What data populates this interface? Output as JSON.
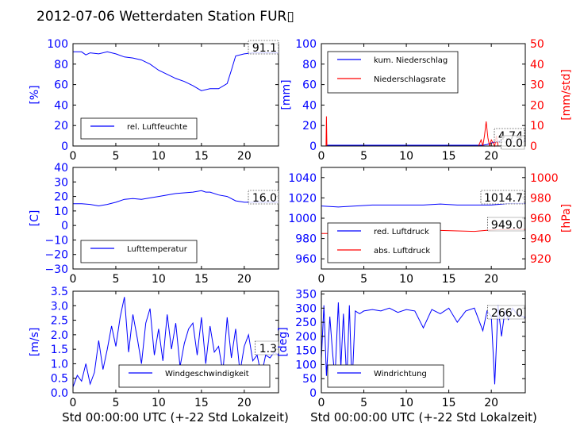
{
  "title": "2012-07-06 Wetterdaten Station FUR▯",
  "xlabel": "Std 00:00:00 UTC (+-22 Std Lokalzeit)",
  "colors": {
    "primary": "#0000ff",
    "secondary": "#ff0000",
    "frame": "#000000"
  },
  "chart_data": [
    {
      "id": "humidity",
      "type": "line",
      "ylabel": "[%]",
      "ylim": [
        0,
        100
      ],
      "yticks": [
        "0",
        "20",
        "40",
        "60",
        "80",
        "100"
      ],
      "xlim": [
        0,
        24
      ],
      "xticks": [
        "0",
        "5",
        "10",
        "15",
        "20"
      ],
      "value_label": "91.1",
      "legend": [
        {
          "name": "rel. Luftfeuchte",
          "color": "#0000ff"
        }
      ],
      "legend_position": "lower-left",
      "series": [
        {
          "name": "rel. Luftfeuchte",
          "color": "#0000ff",
          "x": [
            0,
            1,
            1.5,
            2,
            3,
            4,
            5,
            6,
            7,
            8,
            9,
            10,
            11,
            12,
            13,
            14,
            15,
            16,
            17,
            18,
            18.5,
            19,
            20,
            21,
            22,
            23,
            24
          ],
          "y": [
            92,
            92,
            89,
            91,
            90,
            92,
            90,
            87,
            86,
            84,
            80,
            74,
            70,
            66,
            63,
            59,
            54,
            56,
            56,
            61,
            74,
            88,
            90,
            91,
            91,
            91,
            91
          ]
        }
      ]
    },
    {
      "id": "precipitation",
      "type": "line",
      "ylabel": "[mm]",
      "ylabel_right": "[mm/std]",
      "ylim": [
        0,
        100
      ],
      "ylim_right": [
        0,
        50
      ],
      "yticks": [
        "0",
        "20",
        "40",
        "60",
        "80",
        "100"
      ],
      "yticks_right": [
        "0",
        "10",
        "20",
        "30",
        "40",
        "50"
      ],
      "xlim": [
        0,
        24
      ],
      "xticks": [
        "0",
        "5",
        "10",
        "15",
        "20"
      ],
      "value_label": "4.74",
      "value_label_right": "0.0",
      "legend": [
        {
          "name": "kum. Niederschlag",
          "color": "#0000ff"
        },
        {
          "name": "Niederschlagsrate",
          "color": "#ff0000"
        }
      ],
      "legend_position": "upper-left",
      "series": [
        {
          "name": "kum. Niederschlag",
          "color": "#0000ff",
          "axis": "left",
          "x": [
            0,
            0.6,
            0.7,
            19,
            19.5,
            20,
            20.5,
            21,
            22,
            24
          ],
          "y": [
            0,
            0,
            0.8,
            0.8,
            1.5,
            3,
            4.2,
            4.74,
            4.74,
            4.74
          ]
        },
        {
          "name": "Niederschlagsrate",
          "color": "#ff0000",
          "axis": "right",
          "x": [
            0,
            0.55,
            0.6,
            0.65,
            0.7,
            18.5,
            18.8,
            19,
            19.2,
            19.4,
            19.6,
            19.8,
            20,
            20.4,
            20.6,
            20.8,
            21,
            24
          ],
          "y": [
            0,
            0,
            14.5,
            0,
            0,
            0,
            3,
            0,
            5,
            12,
            4,
            0,
            3,
            0,
            5,
            0,
            0,
            0
          ]
        }
      ]
    },
    {
      "id": "temperature",
      "type": "line",
      "ylabel": "[C]",
      "ylim": [
        -30,
        40
      ],
      "yticks": [
        "−30",
        "−20",
        "−10",
        "0",
        "10",
        "20",
        "30",
        "40"
      ],
      "xlim": [
        0,
        24
      ],
      "xticks": [
        "0",
        "5",
        "10",
        "15",
        "20"
      ],
      "value_label": "16.0",
      "legend": [
        {
          "name": "Lufttemperatur",
          "color": "#0000ff"
        }
      ],
      "legend_position": "lower-left",
      "series": [
        {
          "name": "Lufttemperatur",
          "color": "#0000ff",
          "x": [
            0,
            1,
            2,
            3,
            4,
            5,
            6,
            7,
            8,
            9,
            10,
            11,
            12,
            13,
            14,
            15,
            15.5,
            16,
            17,
            18,
            19,
            20,
            21,
            22,
            23,
            24
          ],
          "y": [
            15,
            15,
            14.5,
            13.5,
            14.5,
            16,
            18,
            18.5,
            18,
            19,
            20,
            21,
            22,
            22.5,
            23,
            24,
            23,
            23,
            21,
            20,
            17,
            16,
            16,
            16,
            16,
            16
          ]
        }
      ]
    },
    {
      "id": "pressure",
      "type": "line",
      "ylabel_right": "[hPa]",
      "ylim": [
        950,
        1050
      ],
      "ylim_right": [
        910,
        1010
      ],
      "yticks": [
        "960",
        "980",
        "1000",
        "1020",
        "1040"
      ],
      "yticks_right": [
        "920",
        "940",
        "960",
        "980",
        "1000"
      ],
      "xlim": [
        0,
        24
      ],
      "xticks": [
        "0",
        "5",
        "10",
        "15",
        "20"
      ],
      "value_label": "1014.7",
      "value_label_right": "949.0",
      "legend": [
        {
          "name": "red. Luftdruck",
          "color": "#0000ff"
        },
        {
          "name": "abs. Luftdruck",
          "color": "#ff0000"
        }
      ],
      "legend_position": "lower-left",
      "series": [
        {
          "name": "red. Luftdruck",
          "color": "#0000ff",
          "axis": "left",
          "x": [
            0,
            2,
            4,
            6,
            8,
            10,
            12,
            14,
            16,
            18,
            20,
            22,
            24
          ],
          "y": [
            1012,
            1011,
            1012,
            1013,
            1013,
            1013,
            1013,
            1014,
            1013,
            1013,
            1013,
            1014.5,
            1014.7
          ]
        },
        {
          "name": "abs. Luftdruck",
          "color": "#ff0000",
          "axis": "right",
          "x": [
            0,
            2,
            4,
            6,
            8,
            10,
            12,
            14,
            16,
            18,
            20,
            22,
            24
          ],
          "y": [
            945,
            945,
            946,
            947,
            948,
            948,
            948,
            948,
            947.5,
            947,
            948.5,
            949,
            949
          ]
        }
      ]
    },
    {
      "id": "wind_speed",
      "type": "line",
      "ylabel": "[m/s]",
      "ylim": [
        0,
        3.5
      ],
      "yticks": [
        "0.0",
        "0.5",
        "1.0",
        "1.5",
        "2.0",
        "2.5",
        "3.0",
        "3.5"
      ],
      "xlim": [
        0,
        24
      ],
      "xticks": [
        "0",
        "5",
        "10",
        "15",
        "20"
      ],
      "value_label": "1.3",
      "legend": [
        {
          "name": "Windgeschwindigkeit",
          "color": "#0000ff"
        }
      ],
      "legend_position": "lower-center",
      "series": [
        {
          "name": "Windgeschwindigkeit",
          "color": "#0000ff",
          "x": [
            0,
            0.5,
            1,
            1.5,
            2,
            2.5,
            3,
            3.5,
            4,
            4.5,
            5,
            5.5,
            6,
            6.5,
            7,
            7.5,
            8,
            8.5,
            9,
            9.5,
            10,
            10.5,
            11,
            11.5,
            12,
            12.5,
            13,
            13.5,
            14,
            14.5,
            15,
            15.5,
            16,
            16.5,
            17,
            17.5,
            18,
            18.5,
            19,
            19.5,
            20,
            20.5,
            21,
            21.5,
            22,
            22.5,
            23,
            23.5,
            24
          ],
          "y": [
            0.2,
            0.6,
            0.4,
            1.0,
            0.3,
            0.7,
            1.8,
            0.8,
            1.5,
            2.3,
            1.6,
            2.6,
            3.3,
            1.4,
            2.7,
            1.9,
            1.0,
            2.4,
            2.9,
            1.3,
            2.2,
            1.1,
            2.7,
            1.5,
            2.4,
            0.9,
            1.7,
            2.2,
            2.4,
            1.3,
            2.6,
            1.0,
            2.3,
            1.4,
            1.6,
            0.7,
            2.6,
            1.2,
            2.2,
            0.7,
            1.6,
            2.0,
            1.1,
            1.3,
            0.6,
            1.3,
            1.2,
            1.4,
            1.3
          ]
        }
      ]
    },
    {
      "id": "wind_direction",
      "type": "line",
      "ylabel": "[deg]",
      "ylim": [
        0,
        360
      ],
      "yticks": [
        "0",
        "50",
        "100",
        "150",
        "200",
        "250",
        "300",
        "350"
      ],
      "xlim": [
        0,
        24
      ],
      "xticks": [
        "0",
        "5",
        "10",
        "15",
        "20"
      ],
      "value_label": "266.0",
      "legend": [
        {
          "name": "Windrichtung",
          "color": "#0000ff"
        }
      ],
      "legend_position": "lower-left",
      "series": [
        {
          "name": "Windrichtung",
          "color": "#0000ff",
          "x": [
            0,
            0.3,
            0.6,
            1,
            1.3,
            1.6,
            2,
            2.3,
            2.6,
            3,
            3.3,
            3.6,
            4,
            4.5,
            5,
            6,
            7,
            8,
            9,
            10,
            11,
            12,
            13,
            14,
            15,
            16,
            17,
            18,
            19,
            19.5,
            20,
            20.4,
            20.8,
            21.2,
            21.6,
            22,
            22.5,
            23,
            24
          ],
          "y": [
            120,
            310,
            60,
            270,
            150,
            50,
            320,
            90,
            280,
            40,
            310,
            20,
            290,
            280,
            290,
            295,
            290,
            300,
            285,
            295,
            290,
            230,
            295,
            280,
            300,
            250,
            290,
            300,
            220,
            290,
            270,
            30,
            310,
            200,
            290,
            260,
            300,
            280,
            266
          ]
        }
      ]
    }
  ]
}
